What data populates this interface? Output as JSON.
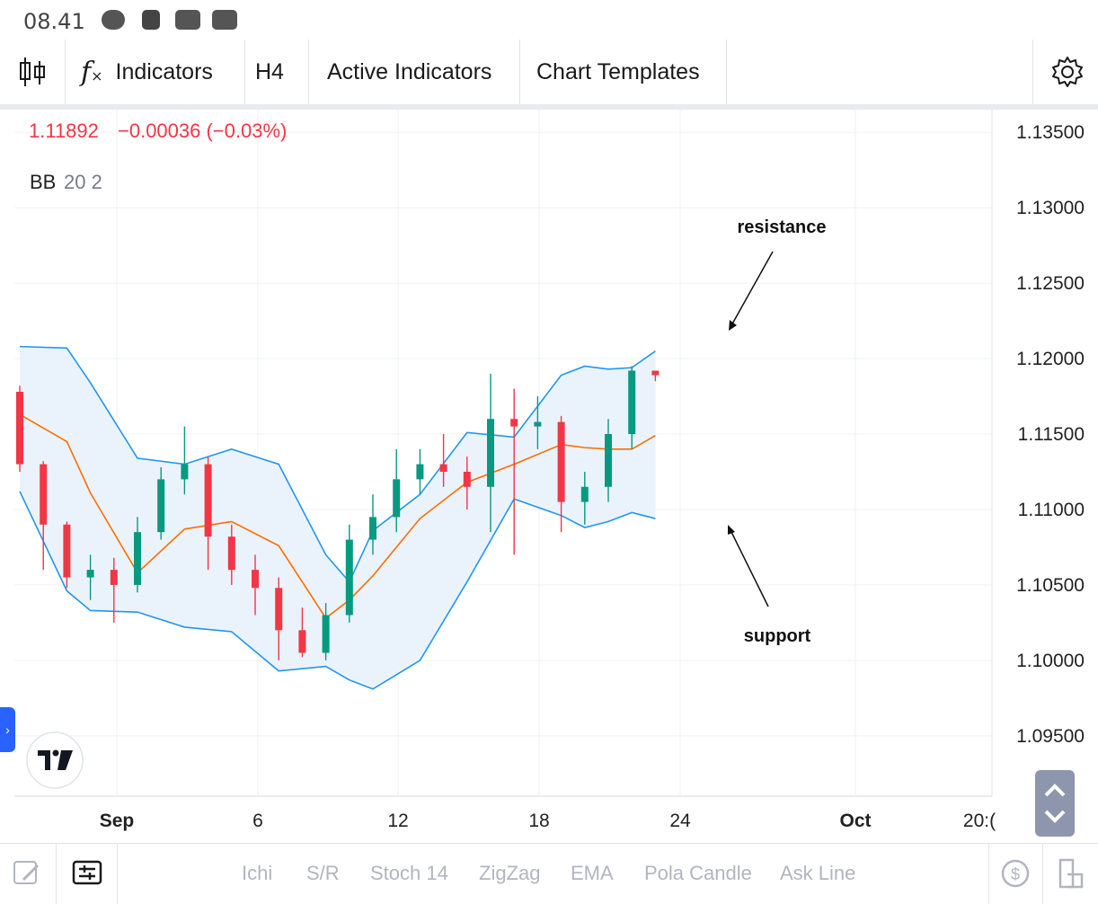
{
  "status_bar": {
    "time": "08.41",
    "icons": [
      "sync-icon",
      "a-badge-icon",
      "youtube-icon",
      "youtube-icon"
    ]
  },
  "toolbar": {
    "chart_type_icon": "candlestick-icon",
    "fx_icon": "function-icon",
    "indicators_label": "Indicators",
    "timeframe_label": "H4",
    "active_indicators_label": "Active Indicators",
    "chart_templates_label": "Chart Templates",
    "settings_icon": "gear-icon"
  },
  "legend": {
    "price": "1.11892",
    "change": "−0.00036 (−0.03%)",
    "indicator_name": "BB",
    "indicator_params": "20 2"
  },
  "annotations": {
    "resistance": "resistance",
    "support": "support"
  },
  "y_ticks": [
    "1.13500",
    "1.13000",
    "1.12500",
    "1.12000",
    "1.11500",
    "1.11000",
    "1.10500",
    "1.10000",
    "1.09500"
  ],
  "x_ticks": [
    "Sep",
    "6",
    "12",
    "18",
    "24",
    "Oct",
    "20:("
  ],
  "bottom_bar": {
    "items": [
      "Ichi",
      "S/R",
      "Stoch 14",
      "ZigZag",
      "EMA",
      "Pola Candle",
      "Ask Line"
    ],
    "left_icons": [
      "brush-icon",
      "layout-icon"
    ],
    "right_icons": [
      "refresh-currency-icon",
      "bookmark-icon"
    ]
  },
  "colors": {
    "up": "#089981",
    "down": "#f23645",
    "band": "#2196f3",
    "basis": "#ff6d00",
    "band_fill": "#eaf3fc"
  },
  "chart_data": {
    "type": "candlestick",
    "x": [
      "Aug 30",
      "Aug 31",
      "Sep 1",
      "Sep 2",
      "Sep 3",
      "Sep 4",
      "Sep 5",
      "Sep 6",
      "Sep 7",
      "Sep 8",
      "Sep 9",
      "Sep 10",
      "Sep 11",
      "Sep 12",
      "Sep 13",
      "Sep 14",
      "Sep 15",
      "Sep 16",
      "Sep 17",
      "Sep 18",
      "Sep 19",
      "Sep 20",
      "Sep 21",
      "Sep 22",
      "Sep 23",
      "Sep 24",
      "Sep 25",
      "Sep 26",
      "Oct 1"
    ],
    "x_ticks": [
      "Sep",
      "6",
      "12",
      "18",
      "24",
      "Oct",
      "20:("
    ],
    "y_range": [
      1.091,
      1.1365
    ],
    "series": [
      {
        "name": "BB upper",
        "type": "line",
        "x": [
          "Aug 30",
          "Sep 1",
          "Sep 2",
          "Sep 4",
          "Sep 6",
          "Sep 8",
          "Sep 10",
          "Sep 12",
          "Sep 13",
          "Sep 14",
          "Sep 16",
          "Sep 18",
          "Sep 20",
          "Sep 22",
          "Sep 23",
          "Sep 24",
          "Sep 25",
          "Sep 26"
        ],
        "values": [
          1.1208,
          1.1207,
          1.1184,
          1.1134,
          1.113,
          1.114,
          1.113,
          1.107,
          1.1052,
          1.1086,
          1.111,
          1.1151,
          1.1148,
          1.1189,
          1.1195,
          1.1193,
          1.1194,
          1.1205
        ]
      },
      {
        "name": "BB basis",
        "type": "line",
        "x": [
          "Aug 30",
          "Sep 1",
          "Sep 2",
          "Sep 4",
          "Sep 6",
          "Sep 8",
          "Sep 10",
          "Sep 12",
          "Sep 13",
          "Sep 14",
          "Sep 16",
          "Sep 18",
          "Sep 20",
          "Sep 22",
          "Sep 23",
          "Sep 24",
          "Sep 25",
          "Sep 26"
        ],
        "values": [
          1.1163,
          1.1145,
          1.1111,
          1.1058,
          1.1087,
          1.1092,
          1.1076,
          1.1028,
          1.104,
          1.1056,
          1.1094,
          1.1118,
          1.113,
          1.1143,
          1.1141,
          1.114,
          1.114,
          1.1149
        ]
      },
      {
        "name": "BB lower",
        "type": "line",
        "x": [
          "Aug 30",
          "Sep 1",
          "Sep 2",
          "Sep 4",
          "Sep 6",
          "Sep 8",
          "Sep 10",
          "Sep 12",
          "Sep 13",
          "Sep 14",
          "Sep 16",
          "Sep 18",
          "Sep 20",
          "Sep 22",
          "Sep 23",
          "Sep 24",
          "Sep 25",
          "Sep 26"
        ],
        "values": [
          1.1112,
          1.1046,
          1.1033,
          1.1032,
          1.1022,
          1.1019,
          1.0993,
          1.0996,
          1.0987,
          1.0981,
          1.1,
          1.1052,
          1.1107,
          1.1096,
          1.1088,
          1.1092,
          1.1098,
          1.1094
        ]
      },
      {
        "name": "Price",
        "type": "ohlc",
        "x": [
          "Aug 30",
          "Aug 31",
          "Sep 1",
          "Sep 2",
          "Sep 3",
          "Sep 4",
          "Sep 5",
          "Sep 6",
          "Sep 7",
          "Sep 8",
          "Sep 9",
          "Sep 10",
          "Sep 11",
          "Sep 12",
          "Sep 13",
          "Sep 14",
          "Sep 15",
          "Sep 16",
          "Sep 17",
          "Sep 18",
          "Sep 19",
          "Sep 20",
          "Sep 21",
          "Sep 22",
          "Sep 23",
          "Sep 24",
          "Sep 25",
          "Sep 26"
        ],
        "open": [
          1.1178,
          1.113,
          1.109,
          1.1055,
          1.106,
          1.105,
          1.1085,
          1.112,
          1.113,
          1.1082,
          1.106,
          1.1048,
          1.102,
          1.1005,
          1.103,
          1.108,
          1.1095,
          1.112,
          1.113,
          1.1125,
          1.1115,
          1.116,
          1.1155,
          1.1158,
          1.1105,
          1.1115,
          1.115,
          1.1192
        ],
        "close": [
          1.113,
          1.109,
          1.1055,
          1.106,
          1.105,
          1.1085,
          1.112,
          1.113,
          1.1082,
          1.106,
          1.1048,
          1.102,
          1.1005,
          1.103,
          1.108,
          1.1095,
          1.112,
          1.113,
          1.1125,
          1.1115,
          1.116,
          1.1155,
          1.1158,
          1.1105,
          1.1115,
          1.115,
          1.1192,
          1.1189
        ],
        "high": [
          1.1182,
          1.1132,
          1.1092,
          1.107,
          1.1068,
          1.1095,
          1.1128,
          1.1155,
          1.1135,
          1.109,
          1.107,
          1.1055,
          1.1035,
          1.1038,
          1.109,
          1.111,
          1.114,
          1.114,
          1.115,
          1.1135,
          1.119,
          1.118,
          1.1175,
          1.1162,
          1.1125,
          1.116,
          1.1195,
          1.1192
        ],
        "low": [
          1.1125,
          1.106,
          1.1048,
          1.104,
          1.1025,
          1.1045,
          1.108,
          1.111,
          1.106,
          1.105,
          1.103,
          1.1,
          1.1002,
          1.1,
          1.1025,
          1.107,
          1.1085,
          1.111,
          1.1115,
          1.11,
          1.1085,
          1.107,
          1.114,
          1.1085,
          1.109,
          1.1105,
          1.114,
          1.1185
        ]
      }
    ],
    "annotations": [
      "resistance",
      "support"
    ],
    "legend": [
      "BB 20 2"
    ]
  }
}
